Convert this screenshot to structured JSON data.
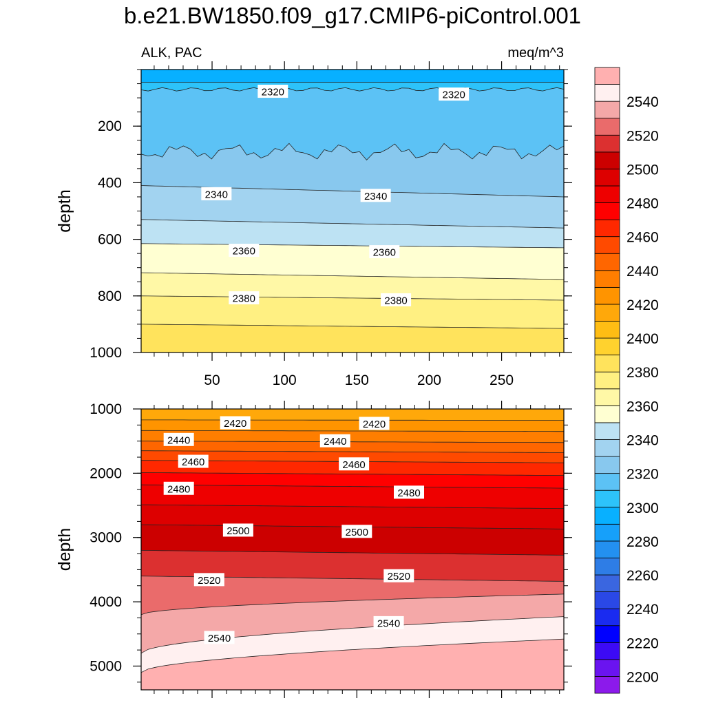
{
  "chart_data": {
    "type": "contour",
    "title": "b.e21.BW1850.f09_g17.CMIP6-piControl.001",
    "left_string": "ALK, PAC",
    "right_string": "meq/m^3",
    "x": {
      "range": [
        1,
        293
      ],
      "ticks": [
        50,
        100,
        150,
        200,
        250
      ],
      "tick_labels": [
        "50",
        "100",
        "150",
        "200",
        "250"
      ]
    },
    "panels": [
      {
        "name": "upper",
        "ylabel": "depth",
        "ylim": [
          1000,
          0
        ],
        "y_ticks": [
          200,
          400,
          600,
          800,
          1000
        ],
        "y_tick_labels": [
          "200",
          "400",
          "600",
          "800",
          "1000"
        ],
        "contour_labels": [
          {
            "text": "2320",
            "x": 92,
            "depth": 78
          },
          {
            "text": "2320",
            "x": 217,
            "depth": 88
          },
          {
            "text": "2340",
            "x": 53,
            "depth": 440
          },
          {
            "text": "2340",
            "x": 163,
            "depth": 446
          },
          {
            "text": "2360",
            "x": 72,
            "depth": 640
          },
          {
            "text": "2360",
            "x": 169,
            "depth": 645
          },
          {
            "text": "2380",
            "x": 72,
            "depth": 808
          },
          {
            "text": "2380",
            "x": 177,
            "depth": 815
          }
        ]
      },
      {
        "name": "lower",
        "ylabel": "depth",
        "ylim": [
          5370,
          1000
        ],
        "y_ticks": [
          1000,
          2000,
          3000,
          4000,
          5000
        ],
        "y_tick_labels": [
          "1000",
          "2000",
          "3000",
          "4000",
          "5000"
        ],
        "contour_labels": [
          {
            "text": "2420",
            "x": 66,
            "depth": 1220
          },
          {
            "text": "2420",
            "x": 162,
            "depth": 1230
          },
          {
            "text": "2440",
            "x": 27,
            "depth": 1480
          },
          {
            "text": "2440",
            "x": 135,
            "depth": 1500
          },
          {
            "text": "2460",
            "x": 37,
            "depth": 1820
          },
          {
            "text": "2460",
            "x": 148,
            "depth": 1860
          },
          {
            "text": "2480",
            "x": 27,
            "depth": 2240
          },
          {
            "text": "2480",
            "x": 186,
            "depth": 2300
          },
          {
            "text": "2500",
            "x": 68,
            "depth": 2890
          },
          {
            "text": "2500",
            "x": 150,
            "depth": 2910
          },
          {
            "text": "2520",
            "x": 48,
            "depth": 3660
          },
          {
            "text": "2520",
            "x": 179,
            "depth": 3600
          },
          {
            "text": "2540",
            "x": 55,
            "depth": 4560
          },
          {
            "text": "2540",
            "x": 172,
            "depth": 4330
          }
        ]
      }
    ],
    "colorbar": {
      "min": 2190,
      "max": 2560,
      "interval": 10,
      "labels": [
        "2200",
        "2220",
        "2240",
        "2260",
        "2280",
        "2300",
        "2320",
        "2340",
        "2360",
        "2380",
        "2400",
        "2420",
        "2440",
        "2460",
        "2480",
        "2500",
        "2520",
        "2540"
      ],
      "colors": [
        "#8c1aeb",
        "#6a14f0",
        "#3c0af5",
        "#0000ff",
        "#1a2bf0",
        "#2a48e6",
        "#3a66e0",
        "#2e7de6",
        "#2390f0",
        "#16a0fa",
        "#08b0ff",
        "#2dc3fa",
        "#5cc2f5",
        "#88c8ee",
        "#a2d3f0",
        "#bde2f3",
        "#ffffd2",
        "#fff8a6",
        "#fff082",
        "#ffe35c",
        "#ffd22e",
        "#ffbd14",
        "#ffa80a",
        "#ff9400",
        "#ff7e00",
        "#ff6600",
        "#ff4a00",
        "#ff2800",
        "#ff0000",
        "#ee0000",
        "#dd0000",
        "#cc0000",
        "#dc3030",
        "#ea6b6b",
        "#f4a8a8",
        "#fff0f0",
        "#ffb0b0"
      ]
    }
  }
}
